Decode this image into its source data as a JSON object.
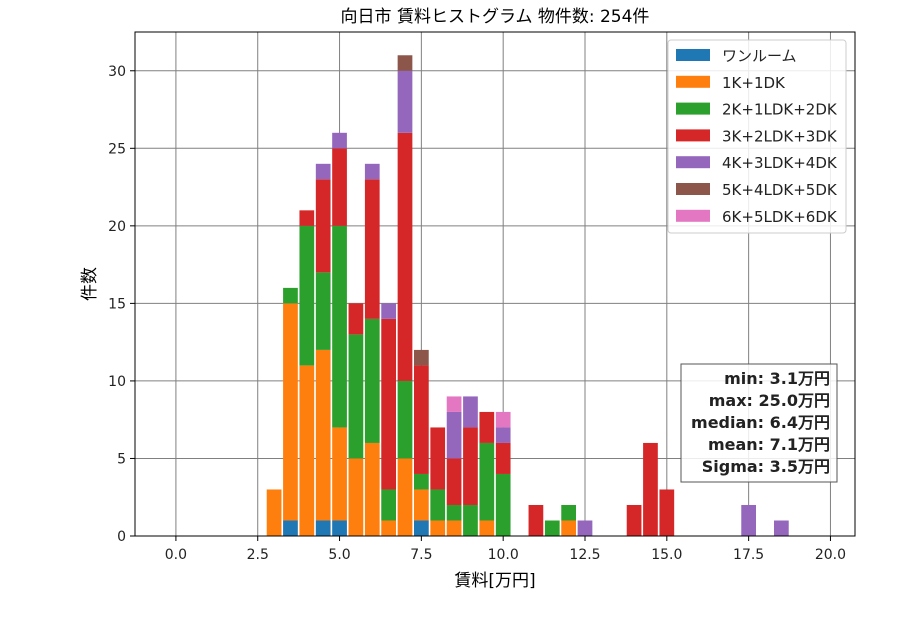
{
  "chart_data": {
    "type": "bar",
    "stacked": true,
    "title": "向日市 賃料ヒストグラム  物件数: 254件",
    "xlabel": "賃料[万円]",
    "ylabel": "件数",
    "xlim": [
      -1.25,
      20.75
    ],
    "ylim": [
      0,
      32.5
    ],
    "xticks": [
      "0.0",
      "2.5",
      "5.0",
      "7.5",
      "10.0",
      "12.5",
      "15.0",
      "17.5",
      "20.0"
    ],
    "xtick_values": [
      0,
      2.5,
      5,
      7.5,
      10,
      12.5,
      15,
      17.5,
      20
    ],
    "yticks": [
      "0",
      "5",
      "10",
      "15",
      "20",
      "25",
      "30"
    ],
    "ytick_values": [
      0,
      5,
      10,
      15,
      20,
      25,
      30
    ],
    "grid": true,
    "legend_position": "top-right",
    "bin_width": 0.5,
    "bins": [
      3.0,
      3.5,
      4.0,
      4.5,
      5.0,
      5.5,
      6.0,
      6.5,
      7.0,
      7.5,
      8.0,
      8.5,
      9.0,
      9.5,
      10.0,
      11.0,
      11.5,
      12.0,
      12.5,
      14.0,
      14.5,
      15.0,
      17.5,
      18.5
    ],
    "series": [
      {
        "name": "ワンルーム",
        "color": "#1f77b4",
        "values": [
          0,
          1,
          0,
          1,
          1,
          0,
          0,
          0,
          0,
          1,
          0,
          0,
          0,
          0,
          0,
          0,
          0,
          0,
          0,
          0,
          0,
          0,
          0,
          0
        ]
      },
      {
        "name": "1K+1DK",
        "color": "#ff7f0e",
        "values": [
          3,
          14,
          11,
          11,
          6,
          5,
          6,
          1,
          5,
          2,
          1,
          1,
          0,
          1,
          0,
          0,
          0,
          1,
          0,
          0,
          0,
          0,
          0,
          0
        ]
      },
      {
        "name": "2K+1LDK+2DK",
        "color": "#2ca02c",
        "values": [
          0,
          1,
          9,
          5,
          13,
          8,
          8,
          2,
          5,
          1,
          2,
          1,
          2,
          5,
          4,
          0,
          1,
          1,
          0,
          0,
          0,
          0,
          0,
          0
        ]
      },
      {
        "name": "3K+2LDK+3DK",
        "color": "#d62728",
        "values": [
          0,
          0,
          1,
          6,
          5,
          2,
          9,
          11,
          16,
          7,
          4,
          3,
          5,
          2,
          2,
          2,
          0,
          0,
          0,
          2,
          6,
          3,
          0,
          0
        ]
      },
      {
        "name": "4K+3LDK+4DK",
        "color": "#9467bd",
        "values": [
          0,
          0,
          0,
          1,
          1,
          0,
          1,
          1,
          4,
          0,
          0,
          3,
          2,
          0,
          1,
          0,
          0,
          0,
          1,
          0,
          0,
          0,
          2,
          1
        ]
      },
      {
        "name": "5K+4LDK+5DK",
        "color": "#8c564b",
        "values": [
          0,
          0,
          0,
          0,
          0,
          0,
          0,
          0,
          1,
          1,
          0,
          0,
          0,
          0,
          0,
          0,
          0,
          0,
          0,
          0,
          0,
          0,
          0,
          0
        ]
      },
      {
        "name": "6K+5LDK+6DK",
        "color": "#e377c2",
        "values": [
          0,
          0,
          0,
          0,
          0,
          0,
          0,
          0,
          0,
          0,
          0,
          1,
          0,
          0,
          1,
          0,
          0,
          0,
          0,
          0,
          0,
          0,
          0,
          0
        ]
      }
    ],
    "stats": {
      "min": "min: 3.1万円",
      "max": "max: 25.0万円",
      "median": "median: 6.4万円",
      "mean": "mean: 7.1万円",
      "sigma": "Sigma: 3.5万円"
    }
  }
}
